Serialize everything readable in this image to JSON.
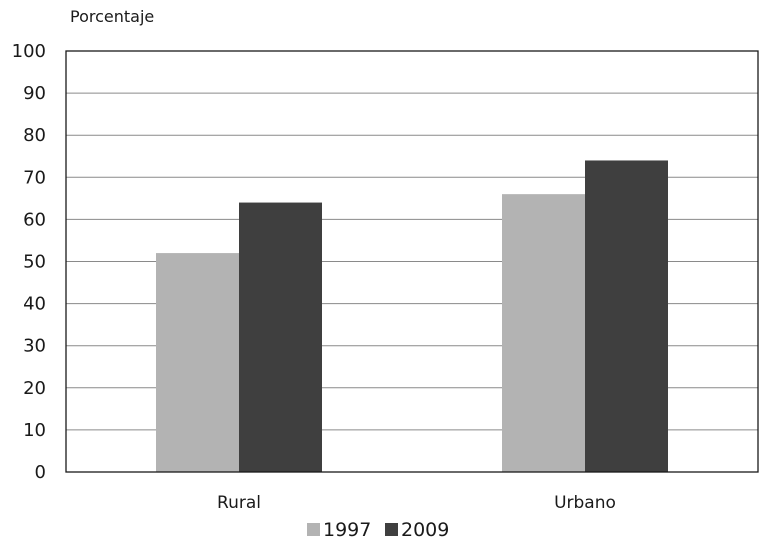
{
  "chart_data": {
    "type": "bar",
    "title": "",
    "ylabel": "Porcentaje",
    "xlabel": "",
    "categories": [
      "Rural",
      "Urbano"
    ],
    "series": [
      {
        "name": "1997",
        "values": [
          52,
          66
        ],
        "color": "#b3b3b3"
      },
      {
        "name": "2009",
        "values": [
          64,
          74
        ],
        "color": "#3f3f3f"
      }
    ],
    "ylim": [
      0,
      100
    ],
    "yticks": [
      0,
      10,
      20,
      30,
      40,
      50,
      60,
      70,
      80,
      90,
      100
    ],
    "grid": true,
    "legend_position": "bottom-center"
  }
}
